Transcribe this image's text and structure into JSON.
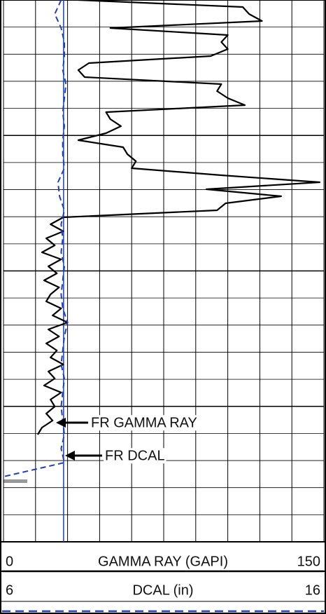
{
  "chart_data": {
    "type": "well_log",
    "xlabel": "GAMMA RAY (GAPI)",
    "xlim": [
      0,
      150
    ],
    "xticks": [
      0,
      150
    ],
    "x2label": "DCAL (in)",
    "x2lim": [
      6,
      16
    ],
    "x2ticks": [
      6,
      16
    ],
    "x_divisions": 10,
    "y_divisions": 20,
    "major_every": 5,
    "grid": true,
    "bit_size": 7.875,
    "bit_size_color": "#1f3fbf",
    "series": [
      {
        "name": "FR GAMMA RAY",
        "color": "#000000",
        "axis": "x",
        "values": [
          35,
          112,
          115,
          121,
          50,
          105,
          102,
          105,
          97,
          40,
          35,
          38,
          102,
          100,
          105,
          113,
          48,
          50,
          55,
          48,
          35,
          56,
          58,
          62,
          60,
          102,
          148,
          95,
          130,
          104,
          100,
          28,
          22,
          28,
          20,
          24,
          18,
          27,
          21,
          25,
          19,
          26,
          22,
          20,
          27,
          23,
          30,
          21,
          26,
          20,
          25,
          22,
          28,
          21,
          24,
          19,
          27,
          22,
          24,
          20,
          23,
          18,
          16
        ]
      },
      {
        "name": "FR DCAL",
        "color": "#1f3fbf",
        "axis": "x2",
        "values": [
          7.8,
          7.6,
          7.8,
          7.9,
          7.9,
          7.85,
          7.95,
          7.9,
          7.85,
          7.9,
          7.85,
          7.85,
          7.9,
          7.7,
          7.75,
          7.9,
          7.8,
          7.85,
          7.8,
          7.9,
          7.85,
          7.8,
          7.85,
          8.0,
          7.9,
          7.85,
          7.8,
          7.9,
          7.85,
          7.8,
          7.85,
          7.9,
          7.8,
          7.9,
          6.0
        ]
      }
    ]
  }
}
